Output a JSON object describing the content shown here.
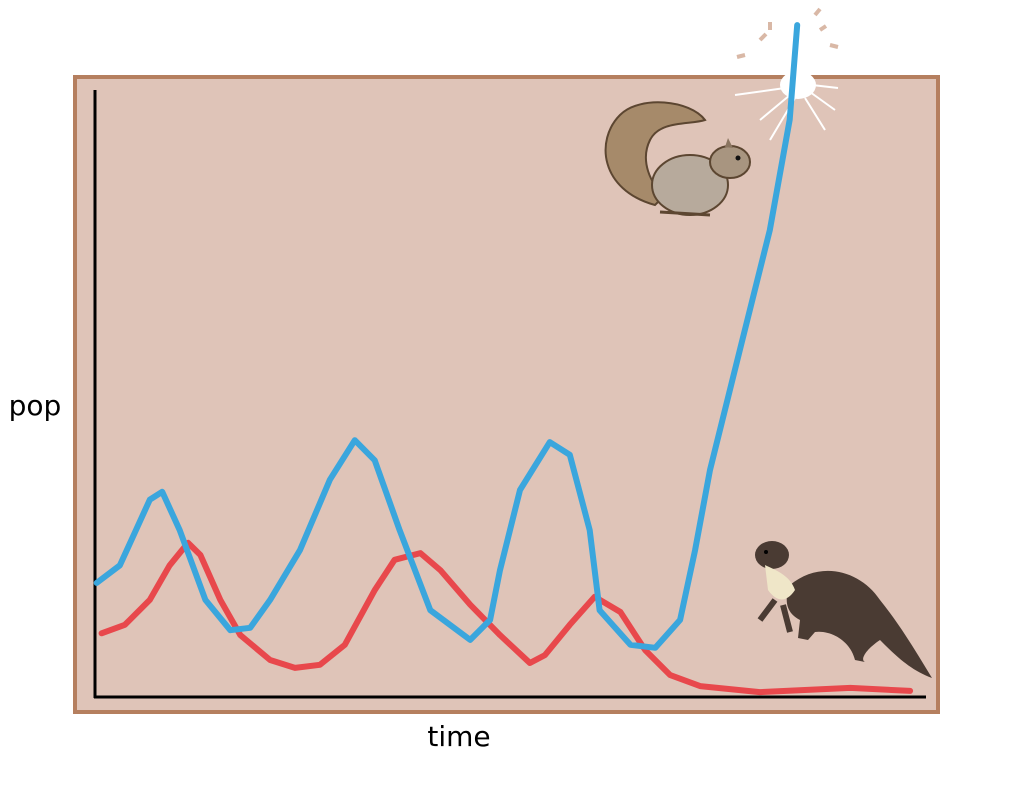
{
  "chart_data": {
    "type": "line",
    "xlabel": "time",
    "ylabel": "pop",
    "xlim": [
      0,
      100
    ],
    "ylim": [
      0,
      100
    ],
    "series": [
      {
        "color": "#3aa6dd",
        "x": [
          0.2,
          3.0,
          6.6,
          8.1,
          10.2,
          13.3,
          16.3,
          18.7,
          21.1,
          24.7,
          28.3,
          31.3,
          33.7,
          36.7,
          40.4,
          45.2,
          47.6,
          48.8,
          51.2,
          54.8,
          57.2,
          59.6,
          60.8,
          64.5,
          67.5,
          70.5,
          72.3,
          74.1,
          77.7,
          81.3,
          83.7,
          84.6
        ],
        "values": [
          18.8,
          21.7,
          32.5,
          33.8,
          27.5,
          16.0,
          11.0,
          11.4,
          16.0,
          24.2,
          35.8,
          42.3,
          39.0,
          27.5,
          14.3,
          9.4,
          12.7,
          20.9,
          34.1,
          42.0,
          39.9,
          27.5,
          14.3,
          8.6,
          8.1,
          12.7,
          24.2,
          37.4,
          57.2,
          76.9,
          95.1,
          110.7
        ]
      },
      {
        "color": "#e8484c",
        "x": [
          0.8,
          3.6,
          6.6,
          9.0,
          11.2,
          12.7,
          15.1,
          17.5,
          21.1,
          24.1,
          27.1,
          30.1,
          33.7,
          36.1,
          39.2,
          41.6,
          45.2,
          48.8,
          52.4,
          54.2,
          57.2,
          60.2,
          63.3,
          66.3,
          69.3,
          72.9,
          80.1,
          91.0,
          98.2
        ],
        "values": [
          10.5,
          11.9,
          16.0,
          21.7,
          25.4,
          23.4,
          16.0,
          10.2,
          6.1,
          4.8,
          5.3,
          8.6,
          17.6,
          22.6,
          23.7,
          20.9,
          15.2,
          10.2,
          5.6,
          6.9,
          11.9,
          16.5,
          14.0,
          7.7,
          3.6,
          1.8,
          0.8,
          1.5,
          1.0
        ]
      }
    ]
  }
}
